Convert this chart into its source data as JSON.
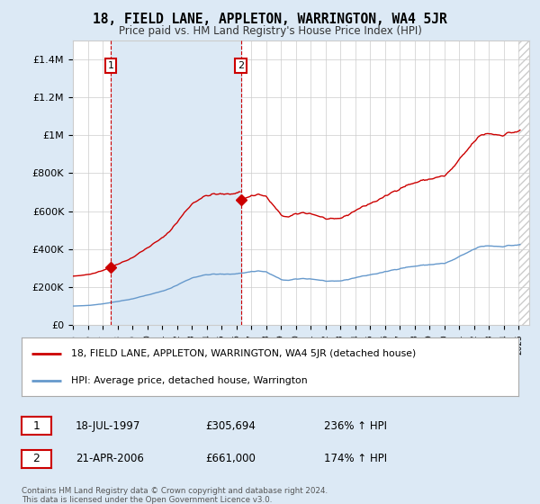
{
  "title": "18, FIELD LANE, APPLETON, WARRINGTON, WA4 5JR",
  "subtitle": "Price paid vs. HM Land Registry's House Price Index (HPI)",
  "property_label": "18, FIELD LANE, APPLETON, WARRINGTON, WA4 5JR (detached house)",
  "hpi_label": "HPI: Average price, detached house, Warrington",
  "sale1_date": "18-JUL-1997",
  "sale1_price": 305694,
  "sale1_hpi_text": "236% ↑ HPI",
  "sale1_x": 1997.54,
  "sale2_date": "21-APR-2006",
  "sale2_price": 661000,
  "sale2_hpi_text": "174% ↑ HPI",
  "sale2_x": 2006.3,
  "footnote": "Contains HM Land Registry data © Crown copyright and database right 2024.\nThis data is licensed under the Open Government Licence v3.0.",
  "property_color": "#cc0000",
  "hpi_color": "#6699cc",
  "shade_color": "#dce9f5",
  "background_color": "#dce9f5",
  "plot_bg_color": "#ffffff",
  "legend_border_color": "#aaaaaa",
  "ylim": [
    0,
    1500000
  ],
  "yticks": [
    0,
    200000,
    400000,
    600000,
    800000,
    1000000,
    1200000,
    1400000
  ],
  "ytick_labels": [
    "£0",
    "£200K",
    "£400K",
    "£600K",
    "£800K",
    "£1M",
    "£1.2M",
    "£1.4M"
  ],
  "xlim_start": 1995.0,
  "xlim_end": 2025.7
}
